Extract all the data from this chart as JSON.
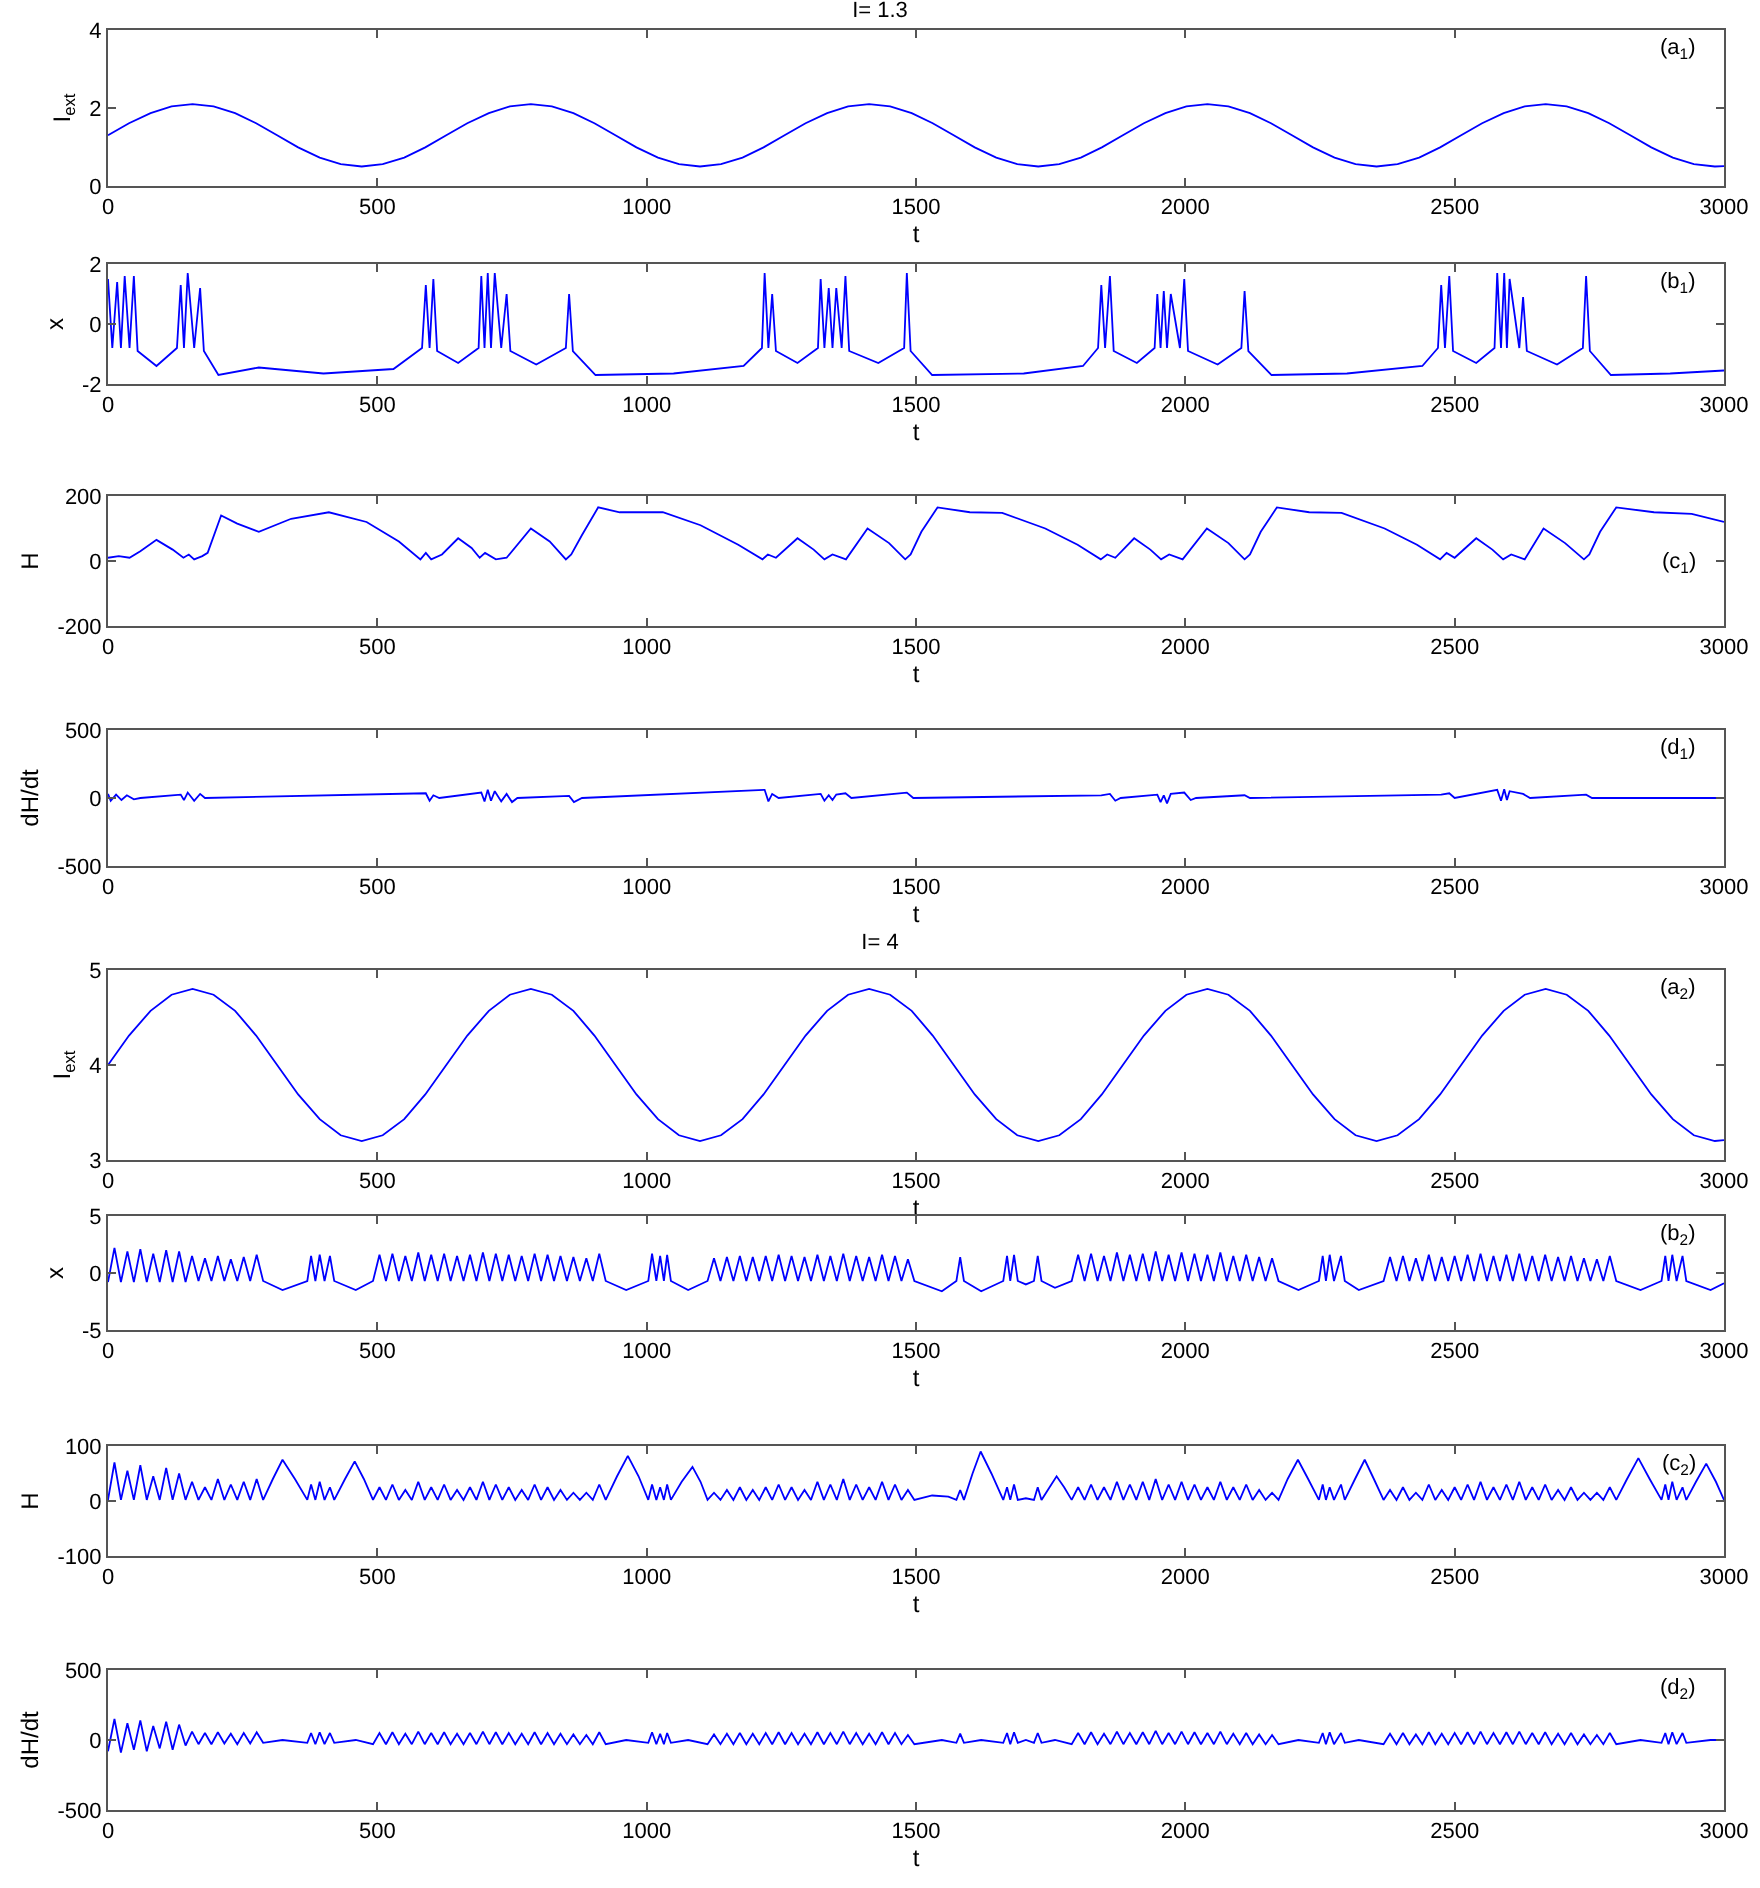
{
  "chart_data": [
    {
      "type": "line",
      "title": "I= 1.3",
      "xlabel": "t",
      "ylabel": "I$_{ext}$",
      "annotations": [
        "(a$_{1}$)"
      ],
      "color": "#0000ff",
      "xlim": [
        0,
        3000
      ],
      "xticks": [
        0,
        500,
        1000,
        1500,
        2000,
        2500,
        3000
      ],
      "ylim": [
        0,
        4
      ],
      "yticks": [
        0,
        2,
        4
      ],
      "x": [
        0,
        39,
        79,
        118,
        157,
        196,
        236,
        275,
        314,
        353,
        393,
        432,
        471,
        510,
        550,
        589,
        628,
        667,
        707,
        746,
        785,
        824,
        864,
        903,
        942,
        981,
        1021,
        1060,
        1099,
        1138,
        1178,
        1217,
        1256,
        1295,
        1335,
        1374,
        1413,
        1452,
        1492,
        1531,
        1570,
        1609,
        1649,
        1688,
        1727,
        1766,
        1806,
        1845,
        1884,
        1923,
        1963,
        2002,
        2041,
        2080,
        2120,
        2159,
        2198,
        2237,
        2277,
        2316,
        2355,
        2394,
        2434,
        2473,
        2512,
        2551,
        2591,
        2630,
        2669,
        2708,
        2748,
        2787,
        2826,
        2865,
        2905,
        2944,
        2983,
        3000
      ],
      "values": [
        1.3,
        1.61,
        1.87,
        2.04,
        2.1,
        2.04,
        1.87,
        1.61,
        1.3,
        0.99,
        0.73,
        0.56,
        0.5,
        0.56,
        0.73,
        0.99,
        1.3,
        1.61,
        1.87,
        2.04,
        2.1,
        2.04,
        1.87,
        1.61,
        1.3,
        0.99,
        0.73,
        0.56,
        0.5,
        0.56,
        0.73,
        0.99,
        1.3,
        1.61,
        1.87,
        2.04,
        2.1,
        2.04,
        1.87,
        1.61,
        1.3,
        0.99,
        0.73,
        0.56,
        0.5,
        0.56,
        0.73,
        0.99,
        1.3,
        1.61,
        1.87,
        2.04,
        2.1,
        2.04,
        1.87,
        1.61,
        1.3,
        0.99,
        0.73,
        0.56,
        0.5,
        0.56,
        0.73,
        0.99,
        1.3,
        1.61,
        1.87,
        2.04,
        2.1,
        2.04,
        1.87,
        1.61,
        1.3,
        0.99,
        0.73,
        0.56,
        0.5,
        0.51
      ]
    },
    {
      "type": "line",
      "xlabel": "t",
      "ylabel": "x",
      "annotations": [
        "(b$_{1}$)"
      ],
      "color": "#0000ff",
      "xlim": [
        0,
        3000
      ],
      "xticks": [
        0,
        500,
        1000,
        1500,
        2000,
        2500,
        3000
      ],
      "ylim": [
        -2,
        2
      ],
      "yticks": [
        -2,
        0,
        2
      ],
      "x": [
        0,
        8,
        17,
        24,
        31,
        40,
        48,
        55,
        90,
        128,
        135,
        141,
        148,
        160,
        171,
        178,
        205,
        280,
        400,
        530,
        583,
        590,
        597,
        604,
        611,
        650,
        688,
        693,
        699,
        705,
        711,
        718,
        730,
        740,
        747,
        795,
        850,
        856,
        863,
        905,
        1050,
        1180,
        1214,
        1219,
        1226,
        1233,
        1240,
        1280,
        1318,
        1323,
        1330,
        1338,
        1345,
        1352,
        1362,
        1369,
        1376,
        1430,
        1478,
        1483,
        1490,
        1530,
        1700,
        1810,
        1838,
        1844,
        1851,
        1860,
        1867,
        1910,
        1943,
        1948,
        1954,
        1960,
        1966,
        1973,
        1990,
        1998,
        2005,
        2060,
        2104,
        2110,
        2117,
        2160,
        2300,
        2440,
        2469,
        2475,
        2482,
        2490,
        2497,
        2540,
        2574,
        2579,
        2586,
        2592,
        2597,
        2602,
        2620,
        2627,
        2634,
        2690,
        2738,
        2744,
        2751,
        2790,
        2900,
        3000
      ],
      "values": [
        1.5,
        -0.8,
        1.4,
        -0.8,
        1.6,
        -0.8,
        1.6,
        -0.9,
        -1.4,
        -0.8,
        1.3,
        -0.8,
        1.7,
        -0.8,
        1.2,
        -0.9,
        -1.7,
        -1.45,
        -1.65,
        -1.5,
        -0.8,
        1.3,
        -0.8,
        1.5,
        -0.9,
        -1.3,
        -0.8,
        1.6,
        -0.8,
        1.7,
        -0.8,
        1.7,
        -0.8,
        1.0,
        -0.9,
        -1.35,
        -0.8,
        1.0,
        -0.9,
        -1.7,
        -1.65,
        -1.4,
        -0.8,
        1.7,
        -0.8,
        1.0,
        -0.9,
        -1.3,
        -0.8,
        1.5,
        -0.8,
        1.2,
        -0.8,
        1.2,
        -0.8,
        1.6,
        -0.9,
        -1.3,
        -0.8,
        1.7,
        -0.9,
        -1.7,
        -1.65,
        -1.4,
        -0.8,
        1.3,
        -0.8,
        1.6,
        -0.9,
        -1.3,
        -0.8,
        1.0,
        -0.8,
        1.1,
        -0.8,
        1.0,
        -0.8,
        1.5,
        -0.9,
        -1.35,
        -0.8,
        1.1,
        -0.9,
        -1.7,
        -1.65,
        -1.4,
        -0.8,
        1.3,
        -0.8,
        1.6,
        -0.9,
        -1.3,
        -0.8,
        1.7,
        -0.8,
        1.7,
        -0.8,
        1.5,
        -0.8,
        0.9,
        -0.9,
        -1.35,
        -0.8,
        1.6,
        -0.9,
        -1.7,
        -1.65,
        -1.55
      ]
    },
    {
      "type": "line",
      "xlabel": "t",
      "ylabel": "H",
      "annotations": [
        "(c$_{1}$)"
      ],
      "color": "#0000ff",
      "xlim": [
        0,
        3000
      ],
      "xticks": [
        0,
        500,
        1000,
        1500,
        2000,
        2500,
        3000
      ],
      "ylim": [
        -200,
        200
      ],
      "yticks": [
        -200,
        0,
        200
      ],
      "x": [
        0,
        20,
        40,
        60,
        90,
        120,
        140,
        150,
        160,
        175,
        185,
        210,
        240,
        280,
        340,
        410,
        480,
        540,
        580,
        590,
        600,
        620,
        650,
        675,
        690,
        700,
        720,
        740,
        785,
        820,
        850,
        860,
        880,
        910,
        950,
        1030,
        1100,
        1170,
        1215,
        1225,
        1240,
        1280,
        1310,
        1330,
        1345,
        1370,
        1410,
        1450,
        1480,
        1490,
        1510,
        1540,
        1600,
        1660,
        1740,
        1800,
        1843,
        1855,
        1870,
        1905,
        1935,
        1955,
        1970,
        1995,
        2040,
        2080,
        2110,
        2120,
        2140,
        2170,
        2230,
        2290,
        2370,
        2430,
        2473,
        2485,
        2500,
        2540,
        2570,
        2590,
        2605,
        2630,
        2665,
        2705,
        2740,
        2750,
        2770,
        2800,
        2870,
        2940,
        3000
      ],
      "values": [
        10,
        15,
        10,
        30,
        65,
        35,
        10,
        20,
        5,
        15,
        25,
        140,
        115,
        90,
        130,
        150,
        120,
        60,
        5,
        25,
        5,
        20,
        70,
        40,
        10,
        25,
        5,
        10,
        100,
        60,
        5,
        20,
        80,
        165,
        150,
        150,
        110,
        50,
        5,
        20,
        10,
        70,
        35,
        5,
        20,
        5,
        100,
        55,
        5,
        20,
        90,
        165,
        150,
        148,
        100,
        50,
        5,
        20,
        10,
        70,
        35,
        5,
        20,
        5,
        100,
        55,
        5,
        20,
        90,
        165,
        150,
        148,
        100,
        50,
        5,
        25,
        10,
        70,
        35,
        5,
        20,
        5,
        100,
        55,
        5,
        20,
        90,
        165,
        150,
        145,
        120
      ]
    },
    {
      "type": "line",
      "xlabel": "t",
      "ylabel": "dH/dt",
      "annotations": [
        "(d$_{1}$)"
      ],
      "color": "#0000ff",
      "xlim": [
        0,
        3000
      ],
      "xticks": [
        0,
        500,
        1000,
        1500,
        2000,
        2500,
        3000
      ],
      "ylim": [
        -500,
        500
      ],
      "yticks": [
        -500,
        0,
        500
      ],
      "x": [
        0,
        5,
        15,
        25,
        35,
        48,
        60,
        135,
        141,
        148,
        160,
        171,
        180,
        590,
        597,
        604,
        615,
        693,
        699,
        705,
        711,
        718,
        730,
        740,
        750,
        760,
        856,
        865,
        880,
        1219,
        1226,
        1233,
        1245,
        1323,
        1330,
        1338,
        1345,
        1352,
        1369,
        1380,
        1483,
        1495,
        1844,
        1860,
        1870,
        1880,
        1948,
        1954,
        1960,
        1966,
        1973,
        1998,
        2010,
        2020,
        2110,
        2120,
        2475,
        2490,
        2500,
        2579,
        2586,
        2592,
        2597,
        2602,
        2627,
        2640,
        2744,
        2755,
        3000
      ],
      "values": [
        30,
        -20,
        25,
        -15,
        20,
        -10,
        0,
        25,
        -15,
        40,
        -20,
        30,
        0,
        35,
        -20,
        20,
        0,
        40,
        -25,
        60,
        -20,
        50,
        -25,
        30,
        -30,
        0,
        15,
        -30,
        0,
        60,
        -25,
        30,
        0,
        30,
        -20,
        20,
        -15,
        25,
        35,
        0,
        40,
        0,
        20,
        30,
        -20,
        0,
        25,
        -30,
        20,
        -40,
        30,
        40,
        -15,
        0,
        20,
        0,
        25,
        35,
        0,
        60,
        -20,
        65,
        -15,
        50,
        30,
        0,
        25,
        0,
        0
      ]
    },
    {
      "type": "line",
      "title": "I= 4",
      "xlabel": "t",
      "ylabel": "I$_{ext}$",
      "annotations": [
        "(a$_{2}$)"
      ],
      "color": "#0000ff",
      "xlim": [
        0,
        3000
      ],
      "xticks": [
        0,
        500,
        1000,
        1500,
        2000,
        2500,
        3000
      ],
      "ylim": [
        3,
        5
      ],
      "yticks": [
        3,
        4,
        5
      ],
      "x": [
        0,
        39,
        79,
        118,
        157,
        196,
        236,
        275,
        314,
        353,
        393,
        432,
        471,
        510,
        550,
        589,
        628,
        667,
        707,
        746,
        785,
        824,
        864,
        903,
        942,
        981,
        1021,
        1060,
        1099,
        1138,
        1178,
        1217,
        1256,
        1295,
        1335,
        1374,
        1413,
        1452,
        1492,
        1531,
        1570,
        1609,
        1649,
        1688,
        1727,
        1766,
        1806,
        1845,
        1884,
        1923,
        1963,
        2002,
        2041,
        2080,
        2120,
        2159,
        2198,
        2237,
        2277,
        2316,
        2355,
        2394,
        2434,
        2473,
        2512,
        2551,
        2591,
        2630,
        2669,
        2708,
        2748,
        2787,
        2826,
        2865,
        2905,
        2944,
        2983,
        3000
      ],
      "values": [
        4,
        4.31,
        4.57,
        4.74,
        4.8,
        4.74,
        4.57,
        4.31,
        4,
        3.69,
        3.43,
        3.26,
        3.2,
        3.26,
        3.43,
        3.69,
        4,
        4.31,
        4.57,
        4.74,
        4.8,
        4.74,
        4.57,
        4.31,
        4,
        3.69,
        3.43,
        3.26,
        3.2,
        3.26,
        3.43,
        3.69,
        4,
        4.31,
        4.57,
        4.74,
        4.8,
        4.74,
        4.57,
        4.31,
        4,
        3.69,
        3.43,
        3.26,
        3.2,
        3.26,
        3.43,
        3.69,
        4,
        4.31,
        4.57,
        4.74,
        4.8,
        4.74,
        4.57,
        4.31,
        4,
        3.69,
        3.43,
        3.26,
        3.2,
        3.26,
        3.43,
        3.69,
        4,
        4.31,
        4.57,
        4.74,
        4.8,
        4.74,
        4.57,
        4.31,
        4,
        3.69,
        3.43,
        3.26,
        3.2,
        3.21
      ]
    },
    {
      "type": "line",
      "xlabel": "t",
      "ylabel": "x",
      "annotations": [
        "(b$_{2}$)"
      ],
      "color": "#0000ff",
      "xlim": [
        0,
        3000
      ],
      "xticks": [
        0,
        500,
        1000,
        1500,
        2000,
        2500,
        3000
      ],
      "ylim": [
        -5,
        5
      ],
      "yticks": [
        -5,
        0,
        5
      ],
      "x": [
        0,
        12,
        24,
        36,
        48,
        60,
        72,
        84,
        96,
        108,
        120,
        132,
        144,
        156,
        168,
        180,
        192,
        204,
        216,
        228,
        240,
        252,
        264,
        276,
        288,
        324,
        370,
        377,
        385,
        393,
        402,
        412,
        420,
        460,
        492,
        504,
        516,
        528,
        540,
        552,
        564,
        576,
        588,
        600,
        612,
        624,
        636,
        648,
        660,
        672,
        684,
        696,
        708,
        720,
        732,
        744,
        756,
        768,
        780,
        792,
        804,
        816,
        828,
        840,
        852,
        864,
        876,
        888,
        900,
        912,
        924,
        962,
        1003,
        1010,
        1018,
        1025,
        1032,
        1038,
        1045,
        1077,
        1113,
        1125,
        1137,
        1149,
        1161,
        1173,
        1185,
        1197,
        1209,
        1221,
        1233,
        1245,
        1257,
        1269,
        1281,
        1293,
        1305,
        1317,
        1329,
        1341,
        1353,
        1365,
        1377,
        1389,
        1401,
        1413,
        1425,
        1437,
        1449,
        1461,
        1473,
        1485,
        1497,
        1548,
        1575,
        1582,
        1589,
        1621,
        1662,
        1669,
        1675,
        1682,
        1689,
        1704,
        1719,
        1726,
        1733,
        1758,
        1789,
        1801,
        1813,
        1825,
        1837,
        1849,
        1861,
        1873,
        1885,
        1897,
        1909,
        1921,
        1933,
        1945,
        1957,
        1969,
        1981,
        1993,
        2005,
        2017,
        2029,
        2041,
        2053,
        2065,
        2077,
        2089,
        2101,
        2113,
        2125,
        2137,
        2149,
        2161,
        2173,
        2210,
        2248,
        2255,
        2261,
        2268,
        2276,
        2289,
        2296,
        2322,
        2368,
        2380,
        2392,
        2404,
        2416,
        2428,
        2440,
        2452,
        2464,
        2476,
        2488,
        2500,
        2512,
        2524,
        2536,
        2548,
        2560,
        2572,
        2584,
        2596,
        2608,
        2620,
        2632,
        2644,
        2656,
        2668,
        2680,
        2692,
        2704,
        2716,
        2728,
        2740,
        2752,
        2764,
        2776,
        2788,
        2800,
        2845,
        2884,
        2891,
        2897,
        2904,
        2912,
        2923,
        2930,
        2975,
        3000
      ],
      "values": [
        -0.8,
        2.2,
        -0.8,
        1.9,
        -0.8,
        2.1,
        -0.8,
        1.7,
        -0.8,
        2.0,
        -0.8,
        1.9,
        -0.8,
        1.5,
        -0.7,
        1.3,
        -0.7,
        1.5,
        -0.7,
        1.2,
        -0.7,
        1.4,
        -0.7,
        1.6,
        -0.7,
        -1.5,
        -0.7,
        1.5,
        -0.7,
        1.6,
        -0.7,
        1.5,
        -0.7,
        -1.5,
        -0.7,
        1.6,
        -0.7,
        1.7,
        -0.7,
        1.5,
        -0.7,
        1.8,
        -0.7,
        1.6,
        -0.7,
        1.7,
        -0.7,
        1.5,
        -0.7,
        1.6,
        -0.7,
        1.8,
        -0.7,
        1.7,
        -0.7,
        1.6,
        -0.7,
        1.5,
        -0.7,
        1.7,
        -0.7,
        1.6,
        -0.7,
        1.5,
        -0.7,
        1.4,
        -0.7,
        1.3,
        -0.7,
        1.7,
        -0.7,
        -1.5,
        -0.7,
        1.7,
        -0.7,
        1.5,
        -0.7,
        1.6,
        -0.7,
        -1.5,
        -0.7,
        1.3,
        -0.7,
        1.4,
        -0.7,
        1.5,
        -0.7,
        1.4,
        -0.7,
        1.5,
        -0.7,
        1.6,
        -0.7,
        1.5,
        -0.7,
        1.4,
        -0.7,
        1.6,
        -0.7,
        1.5,
        -0.7,
        1.7,
        -0.7,
        1.5,
        -0.7,
        1.4,
        -0.7,
        1.6,
        -0.7,
        1.5,
        -0.7,
        1.2,
        -0.7,
        -1.6,
        -0.7,
        1.4,
        -0.7,
        -1.6,
        -0.7,
        1.5,
        -0.7,
        1.6,
        -0.7,
        -1.0,
        -0.7,
        1.5,
        -0.7,
        -1.3,
        -0.7,
        1.6,
        -0.7,
        1.7,
        -0.7,
        1.5,
        -0.7,
        1.8,
        -0.7,
        1.6,
        -0.7,
        1.7,
        -0.7,
        1.9,
        -0.7,
        1.6,
        -0.7,
        1.8,
        -0.7,
        1.7,
        -0.7,
        1.6,
        -0.7,
        1.8,
        -0.7,
        1.5,
        -0.7,
        1.6,
        -0.7,
        1.4,
        -0.7,
        1.3,
        -0.7,
        -1.5,
        -0.7,
        1.5,
        -0.7,
        1.6,
        -0.7,
        1.5,
        -0.7,
        -1.5,
        -0.7,
        1.4,
        -0.7,
        1.5,
        -0.7,
        1.3,
        -0.7,
        1.6,
        -0.7,
        1.4,
        -0.7,
        1.5,
        -0.7,
        1.6,
        -0.7,
        1.7,
        -0.7,
        1.5,
        -0.7,
        1.6,
        -0.7,
        1.7,
        -0.7,
        1.5,
        -0.7,
        1.6,
        -0.7,
        1.4,
        -0.7,
        1.5,
        -0.7,
        1.3,
        -0.7,
        1.2,
        -0.7,
        1.5,
        -0.7,
        -1.5,
        -0.7,
        1.5,
        -0.7,
        1.6,
        -0.7,
        1.5,
        -0.7,
        -1.5,
        -0.9
      ]
    },
    {
      "type": "line",
      "xlabel": "t",
      "ylabel": "H",
      "annotations": [
        "(c$_{2}$)"
      ],
      "color": "#0000ff",
      "xlim": [
        0,
        3000
      ],
      "xticks": [
        0,
        500,
        1000,
        1500,
        2000,
        2500,
        3000
      ],
      "ylim": [
        -100,
        100
      ],
      "yticks": [
        -100,
        0,
        100
      ],
      "x": [
        0,
        12,
        24,
        36,
        48,
        60,
        72,
        84,
        96,
        108,
        120,
        132,
        144,
        156,
        168,
        180,
        192,
        204,
        216,
        228,
        240,
        252,
        264,
        276,
        288,
        306,
        324,
        347,
        370,
        377,
        385,
        393,
        402,
        412,
        420,
        440,
        458,
        475,
        492,
        504,
        516,
        528,
        540,
        552,
        564,
        576,
        588,
        600,
        612,
        624,
        636,
        648,
        660,
        672,
        684,
        696,
        708,
        720,
        732,
        744,
        756,
        768,
        780,
        792,
        804,
        816,
        828,
        840,
        852,
        864,
        876,
        888,
        900,
        912,
        924,
        945,
        965,
        985,
        1003,
        1010,
        1018,
        1025,
        1032,
        1038,
        1045,
        1065,
        1085,
        1100,
        1113,
        1125,
        1137,
        1149,
        1161,
        1173,
        1185,
        1197,
        1209,
        1221,
        1233,
        1245,
        1257,
        1269,
        1281,
        1293,
        1305,
        1317,
        1329,
        1341,
        1353,
        1365,
        1377,
        1389,
        1401,
        1413,
        1425,
        1437,
        1449,
        1461,
        1473,
        1485,
        1497,
        1530,
        1560,
        1575,
        1582,
        1589,
        1605,
        1620,
        1640,
        1662,
        1669,
        1675,
        1682,
        1689,
        1704,
        1719,
        1726,
        1733,
        1748,
        1761,
        1775,
        1789,
        1801,
        1813,
        1825,
        1837,
        1849,
        1861,
        1873,
        1885,
        1897,
        1909,
        1921,
        1933,
        1945,
        1957,
        1969,
        1981,
        1993,
        2005,
        2017,
        2029,
        2041,
        2053,
        2065,
        2077,
        2089,
        2101,
        2113,
        2125,
        2137,
        2149,
        2161,
        2173,
        2190,
        2209,
        2228,
        2248,
        2255,
        2261,
        2268,
        2276,
        2289,
        2296,
        2315,
        2333,
        2350,
        2368,
        2380,
        2392,
        2404,
        2416,
        2428,
        2440,
        2452,
        2464,
        2476,
        2488,
        2500,
        2512,
        2524,
        2536,
        2548,
        2560,
        2572,
        2584,
        2596,
        2608,
        2620,
        2632,
        2644,
        2656,
        2668,
        2680,
        2692,
        2704,
        2716,
        2728,
        2740,
        2752,
        2764,
        2776,
        2788,
        2800,
        2820,
        2841,
        2862,
        2884,
        2891,
        2897,
        2904,
        2912,
        2923,
        2930,
        2948,
        2967,
        2985,
        3000
      ],
      "values": [
        2,
        70,
        2,
        55,
        2,
        65,
        2,
        45,
        2,
        60,
        2,
        50,
        2,
        35,
        2,
        25,
        2,
        40,
        2,
        30,
        2,
        35,
        2,
        40,
        2,
        40,
        75,
        40,
        2,
        30,
        2,
        35,
        2,
        25,
        2,
        40,
        72,
        40,
        2,
        25,
        2,
        30,
        2,
        20,
        2,
        35,
        2,
        25,
        2,
        30,
        2,
        20,
        2,
        25,
        2,
        35,
        2,
        30,
        2,
        25,
        2,
        20,
        2,
        30,
        2,
        25,
        2,
        20,
        2,
        15,
        2,
        15,
        2,
        30,
        2,
        45,
        82,
        45,
        2,
        30,
        2,
        25,
        2,
        30,
        2,
        35,
        62,
        35,
        2,
        15,
        2,
        20,
        2,
        25,
        2,
        20,
        2,
        25,
        2,
        30,
        2,
        25,
        2,
        20,
        2,
        35,
        2,
        30,
        2,
        40,
        2,
        30,
        2,
        25,
        2,
        35,
        2,
        30,
        2,
        20,
        2,
        10,
        8,
        2,
        20,
        2,
        50,
        90,
        50,
        2,
        25,
        2,
        30,
        2,
        5,
        2,
        25,
        2,
        25,
        45,
        25,
        2,
        25,
        2,
        30,
        2,
        25,
        2,
        35,
        2,
        30,
        2,
        35,
        2,
        40,
        2,
        30,
        2,
        35,
        2,
        30,
        2,
        25,
        2,
        35,
        2,
        25,
        2,
        30,
        2,
        20,
        2,
        15,
        2,
        40,
        75,
        40,
        2,
        30,
        2,
        25,
        2,
        30,
        2,
        40,
        75,
        40,
        2,
        20,
        2,
        25,
        2,
        15,
        2,
        30,
        2,
        20,
        2,
        25,
        2,
        30,
        2,
        35,
        2,
        25,
        2,
        30,
        2,
        35,
        2,
        25,
        2,
        30,
        2,
        20,
        2,
        25,
        2,
        15,
        2,
        15,
        2,
        25,
        2,
        40,
        78,
        40,
        2,
        30,
        2,
        35,
        2,
        25,
        2,
        35,
        68,
        35,
        2
      ]
    },
    {
      "type": "line",
      "xlabel": "t",
      "ylabel": "dH/dt",
      "annotations": [
        "(d$_{2}$)"
      ],
      "color": "#0000ff",
      "xlim": [
        0,
        3000
      ],
      "xticks": [
        0,
        500,
        1000,
        1500,
        2000,
        2500,
        3000
      ],
      "ylim": [
        -500,
        500
      ],
      "yticks": [
        -500,
        0,
        500
      ],
      "x": [
        0,
        12,
        24,
        36,
        48,
        60,
        72,
        84,
        96,
        108,
        120,
        132,
        144,
        156,
        168,
        180,
        192,
        204,
        216,
        228,
        240,
        252,
        264,
        276,
        288,
        324,
        370,
        377,
        385,
        393,
        402,
        412,
        420,
        460,
        492,
        504,
        516,
        528,
        540,
        552,
        564,
        576,
        588,
        600,
        612,
        624,
        636,
        648,
        660,
        672,
        684,
        696,
        708,
        720,
        732,
        744,
        756,
        768,
        780,
        792,
        804,
        816,
        828,
        840,
        852,
        864,
        876,
        888,
        900,
        912,
        924,
        962,
        1003,
        1010,
        1018,
        1025,
        1032,
        1038,
        1045,
        1077,
        1113,
        1125,
        1137,
        1149,
        1161,
        1173,
        1185,
        1197,
        1209,
        1221,
        1233,
        1245,
        1257,
        1269,
        1281,
        1293,
        1305,
        1317,
        1329,
        1341,
        1353,
        1365,
        1377,
        1389,
        1401,
        1413,
        1425,
        1437,
        1449,
        1461,
        1473,
        1485,
        1497,
        1548,
        1575,
        1582,
        1589,
        1621,
        1662,
        1669,
        1675,
        1682,
        1689,
        1704,
        1719,
        1726,
        1733,
        1758,
        1789,
        1801,
        1813,
        1825,
        1837,
        1849,
        1861,
        1873,
        1885,
        1897,
        1909,
        1921,
        1933,
        1945,
        1957,
        1969,
        1981,
        1993,
        2005,
        2017,
        2029,
        2041,
        2053,
        2065,
        2077,
        2089,
        2101,
        2113,
        2125,
        2137,
        2149,
        2161,
        2173,
        2210,
        2248,
        2255,
        2261,
        2268,
        2276,
        2289,
        2296,
        2322,
        2368,
        2380,
        2392,
        2404,
        2416,
        2428,
        2440,
        2452,
        2464,
        2476,
        2488,
        2500,
        2512,
        2524,
        2536,
        2548,
        2560,
        2572,
        2584,
        2596,
        2608,
        2620,
        2632,
        2644,
        2656,
        2668,
        2680,
        2692,
        2704,
        2716,
        2728,
        2740,
        2752,
        2764,
        2776,
        2788,
        2800,
        2845,
        2884,
        2891,
        2897,
        2904,
        2912,
        2923,
        2930,
        2975,
        3000
      ],
      "values": [
        -80,
        150,
        -90,
        120,
        -70,
        140,
        -80,
        100,
        -60,
        130,
        -70,
        110,
        -40,
        60,
        -30,
        50,
        -30,
        55,
        -25,
        45,
        -30,
        50,
        -25,
        55,
        -20,
        0,
        -20,
        50,
        -30,
        55,
        -30,
        50,
        -20,
        0,
        -30,
        50,
        -30,
        55,
        -30,
        45,
        -30,
        60,
        -30,
        50,
        -30,
        55,
        -30,
        45,
        -30,
        50,
        -30,
        60,
        -30,
        55,
        -30,
        50,
        -30,
        45,
        -30,
        55,
        -30,
        50,
        -30,
        45,
        -30,
        40,
        -30,
        35,
        -30,
        55,
        -30,
        0,
        -20,
        55,
        -30,
        45,
        -30,
        50,
        -20,
        0,
        -30,
        40,
        -30,
        45,
        -30,
        50,
        -30,
        45,
        -30,
        50,
        -30,
        55,
        -30,
        50,
        -30,
        45,
        -30,
        55,
        -30,
        50,
        -30,
        60,
        -30,
        50,
        -30,
        45,
        -30,
        55,
        -30,
        50,
        -30,
        35,
        -30,
        0,
        -20,
        45,
        -20,
        0,
        -20,
        50,
        -30,
        55,
        -20,
        0,
        -20,
        50,
        -20,
        0,
        -30,
        50,
        -30,
        55,
        -30,
        45,
        -30,
        60,
        -30,
        50,
        -30,
        55,
        -30,
        65,
        -30,
        50,
        -30,
        60,
        -30,
        55,
        -30,
        50,
        -30,
        60,
        -30,
        45,
        -30,
        50,
        -30,
        40,
        -30,
        35,
        -30,
        0,
        -20,
        50,
        -30,
        55,
        -30,
        50,
        -20,
        0,
        -30,
        45,
        -30,
        50,
        -30,
        40,
        -30,
        55,
        -30,
        45,
        -30,
        50,
        -30,
        55,
        -30,
        60,
        -30,
        50,
        -30,
        55,
        -30,
        60,
        -30,
        50,
        -30,
        55,
        -30,
        45,
        -30,
        50,
        -30,
        40,
        -30,
        35,
        -30,
        50,
        -30,
        0,
        -20,
        50,
        -30,
        55,
        -30,
        50,
        -20,
        0,
        0
      ]
    }
  ]
}
